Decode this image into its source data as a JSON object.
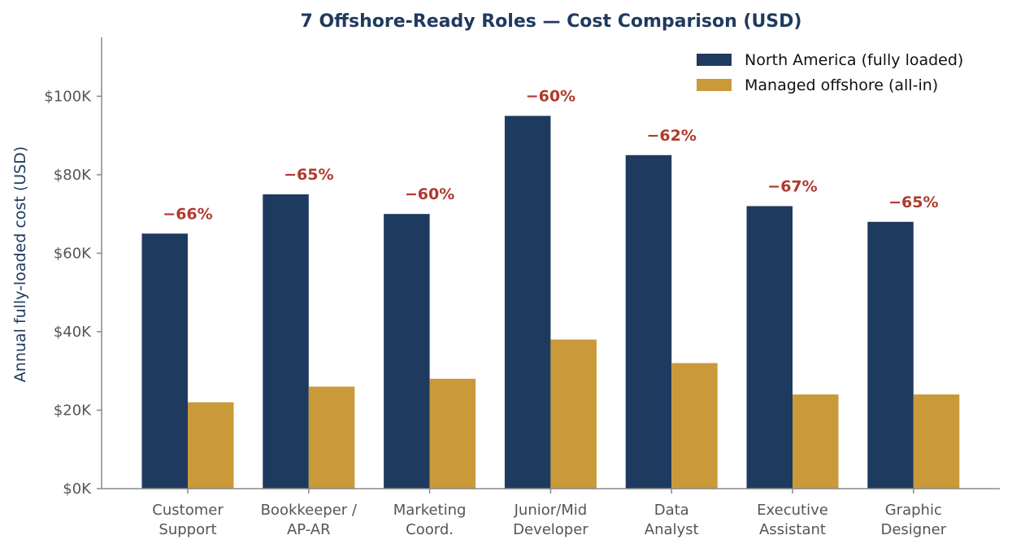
{
  "chart_data": {
    "type": "bar",
    "title": "7 Offshore-Ready Roles — Cost Comparison (USD)",
    "ylabel": "Annual fully-loaded cost (USD)",
    "xlabel": "",
    "ylim": [
      0,
      115000
    ],
    "yticks": [
      0,
      20000,
      40000,
      60000,
      80000,
      100000
    ],
    "ytick_labels": [
      "$0K",
      "$20K",
      "$40K",
      "$60K",
      "$80K",
      "$100K"
    ],
    "categories": [
      [
        "Customer",
        "Support"
      ],
      [
        "Bookkeeper /",
        "AP-AR"
      ],
      [
        "Marketing",
        "Coord."
      ],
      [
        "Junior/Mid",
        "Developer"
      ],
      [
        "Data",
        "Analyst"
      ],
      [
        "Executive",
        "Assistant"
      ],
      [
        "Graphic",
        "Designer"
      ]
    ],
    "series": [
      {
        "name": "North America (fully loaded)",
        "color": "#1f3a5f",
        "values": [
          65000,
          75000,
          70000,
          95000,
          85000,
          72000,
          68000
        ]
      },
      {
        "name": "Managed offshore (all-in)",
        "color": "#c9993a",
        "values": [
          22000,
          26000,
          28000,
          38000,
          32000,
          24000,
          24000
        ]
      }
    ],
    "annotations": [
      "−66%",
      "−65%",
      "−60%",
      "−60%",
      "−62%",
      "−67%",
      "−65%"
    ],
    "annotation_color": "#b03a2e",
    "title_color": "#1f3a5f",
    "legend_position": "top-right",
    "grid": false
  }
}
